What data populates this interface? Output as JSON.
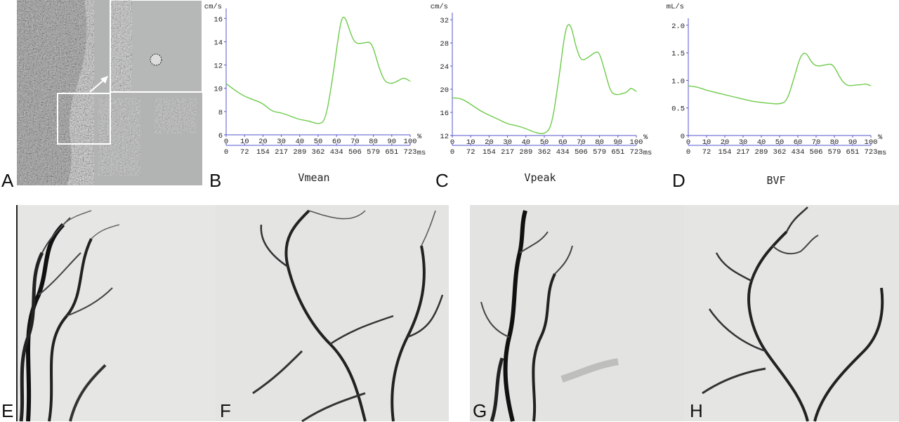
{
  "panels": {
    "letters": [
      "A",
      "B",
      "C",
      "D",
      "E",
      "F",
      "G",
      "H"
    ]
  },
  "colors": {
    "curve": "#6ecb4a",
    "axis": "#5555cc",
    "image_gray": "#b2b4b3"
  },
  "chart_data": [
    {
      "type": "line",
      "title": "Vmean",
      "ylabel": "cm/s",
      "ylim": [
        6,
        16.5
      ],
      "yticks": [
        6,
        8,
        10,
        12,
        14,
        16
      ],
      "xlim": [
        0,
        100
      ],
      "xunit": "%",
      "x2unit": "ms",
      "xticks_percent": [
        0,
        10,
        20,
        30,
        40,
        50,
        60,
        70,
        80,
        90,
        100
      ],
      "xticks_ms": [
        "0",
        "72",
        "154",
        "217",
        "289",
        "362",
        "434",
        "506",
        "579",
        "651",
        "723"
      ],
      "series": [
        {
          "x": [
            0,
            5,
            10,
            15,
            20,
            25,
            30,
            35,
            40,
            45,
            50,
            54,
            58,
            61,
            63,
            65,
            67,
            70,
            75,
            78,
            80,
            83,
            86,
            89,
            92,
            95,
            97,
            100
          ],
          "values": [
            10.4,
            9.8,
            9.3,
            9.0,
            8.7,
            8.0,
            7.9,
            7.6,
            7.3,
            7.2,
            6.9,
            7.2,
            11.0,
            14.5,
            16.2,
            16.0,
            15.0,
            13.8,
            13.9,
            14.0,
            13.5,
            11.8,
            10.6,
            10.4,
            10.5,
            10.8,
            10.9,
            10.6
          ]
        }
      ]
    },
    {
      "type": "line",
      "title": "Vpeak",
      "ylabel": "cm/s",
      "ylim": [
        12,
        32.5
      ],
      "yticks": [
        12,
        16,
        20,
        24,
        28,
        32
      ],
      "xlim": [
        0,
        100
      ],
      "xunit": "%",
      "x2unit": "ms",
      "xticks_percent": [
        0,
        10,
        20,
        30,
        40,
        50,
        60,
        70,
        80,
        90,
        100
      ],
      "xticks_ms": [
        "0",
        "72",
        "154",
        "217",
        "289",
        "362",
        "434",
        "506",
        "579",
        "651",
        "723"
      ],
      "series": [
        {
          "x": [
            0,
            5,
            10,
            15,
            20,
            25,
            30,
            35,
            40,
            45,
            50,
            54,
            58,
            61,
            63,
            65,
            67,
            70,
            74,
            78,
            80,
            83,
            86,
            89,
            92,
            95,
            97,
            100
          ],
          "values": [
            18.5,
            18.4,
            17.4,
            16.3,
            15.5,
            14.8,
            14.0,
            13.7,
            13.2,
            12.5,
            12.2,
            13.5,
            22.0,
            29.5,
            31.5,
            30.5,
            27.5,
            24.8,
            25.5,
            26.5,
            26.3,
            23.0,
            19.5,
            19.0,
            19.2,
            19.5,
            20.3,
            19.6
          ]
        }
      ]
    },
    {
      "type": "line",
      "title": "BVF",
      "ylabel": "mL/s",
      "ylim": [
        0,
        2.05
      ],
      "yticks": [
        "0",
        "0.5",
        "1.0",
        "1.5",
        "2.0"
      ],
      "yticks_values": [
        0,
        0.5,
        1.0,
        1.5,
        2.0
      ],
      "xlim": [
        0,
        100
      ],
      "xunit": "%",
      "x2unit": "ms",
      "xticks_percent": [
        0,
        10,
        20,
        30,
        40,
        50,
        60,
        70,
        80,
        90,
        100
      ],
      "xticks_ms": [
        "0",
        "72",
        "154",
        "217",
        "289",
        "362",
        "434",
        "506",
        "579",
        "651",
        "723"
      ],
      "series": [
        {
          "x": [
            0,
            5,
            10,
            15,
            20,
            25,
            30,
            35,
            40,
            45,
            50,
            54,
            58,
            61,
            63,
            65,
            67,
            70,
            75,
            78,
            80,
            83,
            86,
            89,
            92,
            95,
            97,
            100
          ],
          "values": [
            0.9,
            0.88,
            0.82,
            0.78,
            0.74,
            0.7,
            0.66,
            0.62,
            0.6,
            0.58,
            0.57,
            0.62,
            1.05,
            1.4,
            1.5,
            1.48,
            1.35,
            1.25,
            1.28,
            1.3,
            1.25,
            1.05,
            0.92,
            0.9,
            0.92,
            0.92,
            0.94,
            0.9
          ]
        }
      ]
    }
  ]
}
